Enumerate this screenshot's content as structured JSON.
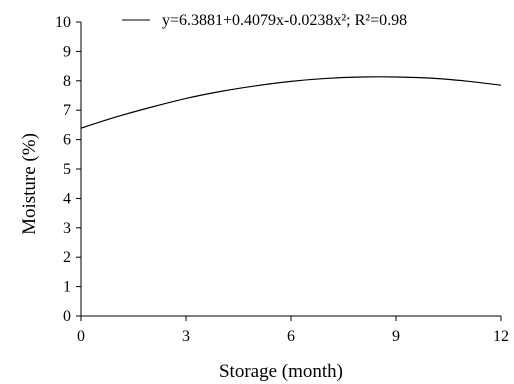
{
  "chart_data": {
    "type": "line",
    "title": "",
    "xlabel": "Storage (month)",
    "ylabel": "Moisture (%)",
    "xlim": [
      0,
      12
    ],
    "ylim": [
      0,
      10
    ],
    "xticks": [
      0,
      3,
      6,
      9,
      12
    ],
    "yticks": [
      0,
      1,
      2,
      3,
      4,
      5,
      6,
      7,
      8,
      9,
      10
    ],
    "grid": false,
    "legend_position": "top",
    "series": [
      {
        "name": "y=6.3881+0.4079x-0.0238x²; R²=0.98",
        "color": "#000000",
        "x": [
          0,
          1,
          2,
          3,
          4,
          5,
          6,
          7,
          8,
          9,
          10,
          11,
          12
        ],
        "y": [
          6.39,
          6.77,
          7.1,
          7.4,
          7.64,
          7.83,
          7.98,
          8.08,
          8.13,
          8.13,
          8.09,
          7.99,
          7.85
        ]
      }
    ]
  }
}
